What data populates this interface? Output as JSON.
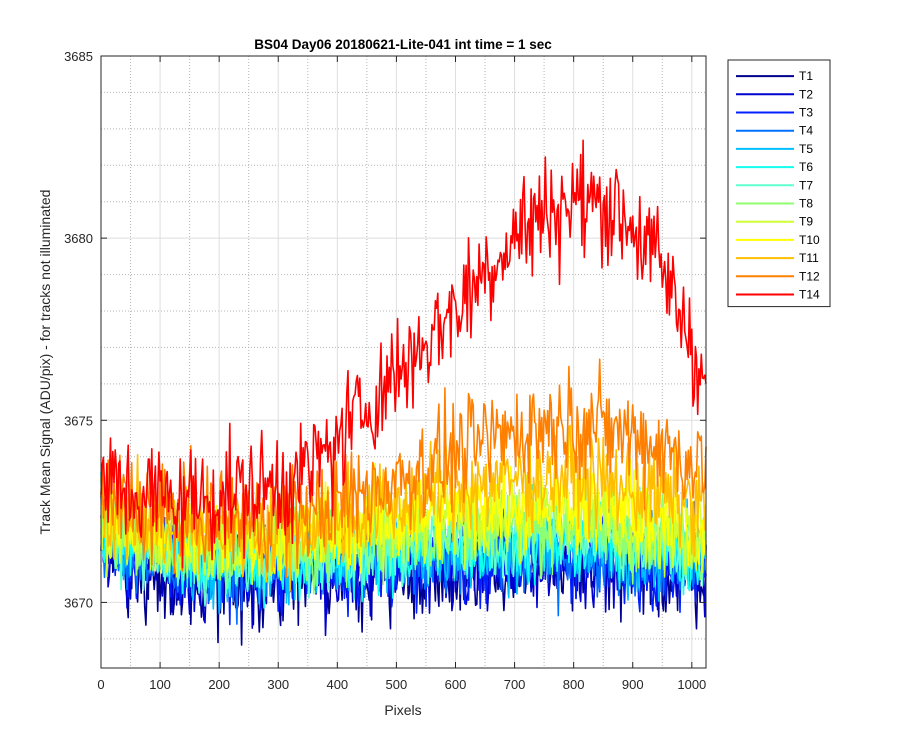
{
  "chart_data": {
    "type": "line",
    "title": "BS04 Day06 20180621-Lite-041 int time = 1 sec",
    "xlabel": "Pixels",
    "ylabel": "Track Mean Signal (ADU/pix) - for tracks not illuminated",
    "xlim": [
      0,
      1024
    ],
    "ylim": [
      3668.2,
      3685
    ],
    "xticks": [
      0,
      100,
      200,
      300,
      400,
      500,
      600,
      700,
      800,
      900,
      1000
    ],
    "yticks": [
      3670,
      3675,
      3680,
      3685
    ],
    "xtick_labels": [
      "0",
      "100",
      "200",
      "300",
      "400",
      "500",
      "600",
      "700",
      "800",
      "900",
      "1000"
    ],
    "ytick_labels": [
      "3670",
      "3675",
      "3680",
      "3685"
    ],
    "grid": "major solid, minor dotted",
    "legend_position": "outside-top-right",
    "series": [
      {
        "name": "T1",
        "color": "#00008F",
        "profile_x": [
          0,
          50,
          150,
          300,
          400,
          500,
          600,
          700,
          800,
          900,
          1024
        ],
        "profile_y": [
          3671.6,
          3671.0,
          3670.6,
          3670.6,
          3670.7,
          3670.9,
          3671.0,
          3671.0,
          3671.0,
          3670.9,
          3670.8
        ],
        "noise": 0.9
      },
      {
        "name": "T2",
        "color": "#0000CF",
        "profile_x": [
          0,
          50,
          150,
          300,
          400,
          500,
          600,
          700,
          800,
          900,
          1024
        ],
        "profile_y": [
          3671.8,
          3671.2,
          3670.8,
          3670.8,
          3670.9,
          3671.0,
          3671.1,
          3671.1,
          3671.1,
          3671.0,
          3670.9
        ],
        "noise": 0.85
      },
      {
        "name": "T3",
        "color": "#0020FF",
        "profile_x": [
          0,
          50,
          150,
          300,
          400,
          500,
          600,
          700,
          800,
          900,
          1024
        ],
        "profile_y": [
          3671.9,
          3671.3,
          3670.9,
          3670.9,
          3671.0,
          3671.1,
          3671.2,
          3671.3,
          3671.3,
          3671.2,
          3671.0
        ],
        "noise": 0.85
      },
      {
        "name": "T4",
        "color": "#0070FF",
        "profile_x": [
          0,
          50,
          150,
          300,
          400,
          500,
          600,
          700,
          800,
          900,
          1024
        ],
        "profile_y": [
          3672.0,
          3671.4,
          3671.0,
          3671.0,
          3671.1,
          3671.2,
          3671.3,
          3671.4,
          3671.4,
          3671.3,
          3671.1
        ],
        "noise": 0.8
      },
      {
        "name": "T5",
        "color": "#00BFFF",
        "profile_x": [
          0,
          50,
          150,
          300,
          400,
          500,
          600,
          700,
          800,
          900,
          1024
        ],
        "profile_y": [
          3672.1,
          3671.5,
          3671.1,
          3671.1,
          3671.2,
          3671.3,
          3671.5,
          3671.6,
          3671.6,
          3671.4,
          3671.2
        ],
        "noise": 0.8
      },
      {
        "name": "T6",
        "color": "#10FFEF",
        "profile_x": [
          0,
          50,
          150,
          300,
          400,
          500,
          600,
          700,
          800,
          900,
          1024
        ],
        "profile_y": [
          3672.2,
          3671.6,
          3671.2,
          3671.2,
          3671.3,
          3671.4,
          3671.6,
          3671.7,
          3671.7,
          3671.5,
          3671.3
        ],
        "noise": 0.8
      },
      {
        "name": "T7",
        "color": "#60FFCF",
        "profile_x": [
          0,
          50,
          150,
          300,
          400,
          500,
          600,
          700,
          800,
          900,
          1024
        ],
        "profile_y": [
          3672.3,
          3671.7,
          3671.3,
          3671.3,
          3671.4,
          3671.6,
          3671.8,
          3671.9,
          3671.9,
          3671.7,
          3671.4
        ],
        "noise": 0.8
      },
      {
        "name": "T8",
        "color": "#8FFF70",
        "profile_x": [
          0,
          50,
          150,
          300,
          400,
          500,
          600,
          700,
          800,
          900,
          1024
        ],
        "profile_y": [
          3672.4,
          3671.9,
          3671.5,
          3671.5,
          3671.6,
          3671.8,
          3672.0,
          3672.1,
          3672.1,
          3671.9,
          3671.6
        ],
        "noise": 0.8
      },
      {
        "name": "T9",
        "color": "#CFFF30",
        "profile_x": [
          0,
          50,
          150,
          300,
          400,
          500,
          600,
          700,
          800,
          900,
          1024
        ],
        "profile_y": [
          3672.5,
          3672.0,
          3671.6,
          3671.6,
          3671.8,
          3672.0,
          3672.2,
          3672.4,
          3672.4,
          3672.1,
          3671.8
        ],
        "noise": 0.8
      },
      {
        "name": "T10",
        "color": "#FFFF00",
        "profile_x": [
          0,
          50,
          150,
          300,
          400,
          500,
          600,
          700,
          800,
          900,
          1024
        ],
        "profile_y": [
          3672.6,
          3672.2,
          3671.8,
          3671.8,
          3672.0,
          3672.3,
          3672.6,
          3672.8,
          3672.8,
          3672.5,
          3672.1
        ],
        "noise": 0.85
      },
      {
        "name": "T11",
        "color": "#FFBF00",
        "profile_x": [
          0,
          50,
          150,
          300,
          400,
          500,
          600,
          700,
          800,
          900,
          1024
        ],
        "profile_y": [
          3672.7,
          3672.3,
          3672.0,
          3672.0,
          3672.3,
          3672.7,
          3673.1,
          3673.4,
          3673.5,
          3673.1,
          3672.6
        ],
        "noise": 0.9
      },
      {
        "name": "T12",
        "color": "#FF8000",
        "profile_x": [
          0,
          50,
          150,
          300,
          400,
          450,
          500,
          600,
          700,
          800,
          900,
          1024
        ],
        "profile_y": [
          3672.9,
          3672.6,
          3672.3,
          3672.3,
          3672.7,
          3673.0,
          3673.4,
          3674.1,
          3674.7,
          3675.0,
          3674.6,
          3673.7
        ],
        "noise": 1.0
      },
      {
        "name": "T14",
        "color": "#FF0000",
        "profile_x": [
          0,
          50,
          150,
          300,
          350,
          400,
          450,
          500,
          550,
          600,
          650,
          700,
          750,
          800,
          850,
          900,
          950,
          1000,
          1024
        ],
        "profile_y": [
          3673.3,
          3673.0,
          3672.8,
          3673.2,
          3673.6,
          3674.4,
          3675.4,
          3676.3,
          3677.2,
          3678.1,
          3679.1,
          3680.1,
          3680.7,
          3681.0,
          3681.0,
          3680.4,
          3679.1,
          3677.2,
          3676.0
        ],
        "noise": 1.1
      }
    ]
  }
}
